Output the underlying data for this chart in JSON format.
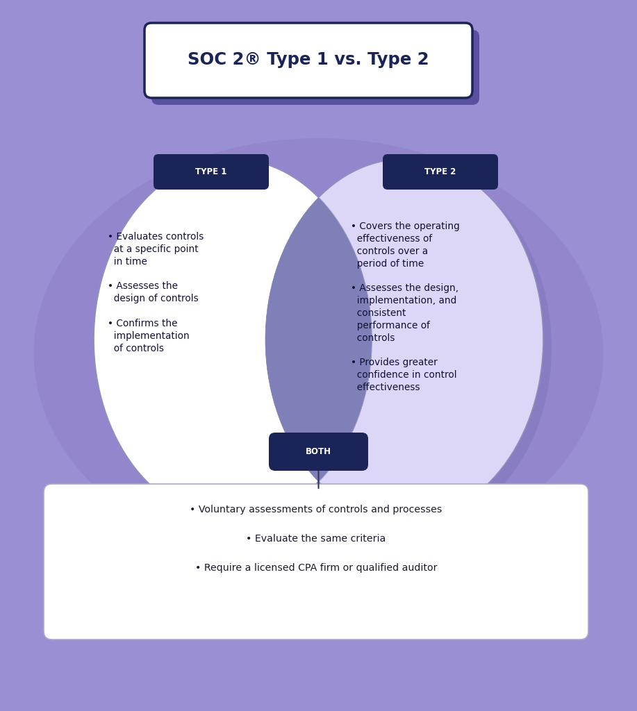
{
  "title": "SOC 2® Type 1 vs. Type 2",
  "background_color": "#9b8fd4",
  "circle_left_color": "#ffffff",
  "circle_right_color": "#dcd6f7",
  "intersection_hatch_color": "#c8c2ee",
  "label_bg_color": "#1a2456",
  "label_text_color": "#ffffff",
  "label1": "TYPE 1",
  "label2": "TYPE 2",
  "label_both": "BOTH",
  "type1_items": [
    "• Evaluates controls\n  at a specific point\n  in time",
    "• Assesses the\n  design of controls",
    "• Confirms the\n  implementation\n  of controls"
  ],
  "type2_items": [
    "• Covers the operating\n  effectiveness of\n  controls over a\n  period of time",
    "• Assesses the design,\n  implementation, and\n  consistent\n  performance of\n  controls",
    "• Provides greater\n  confidence in control\n  effectiveness"
  ],
  "both_items": [
    "• Voluntary assessments of controls and processes",
    "• Evaluate the same criteria",
    "• Require a licensed CPA firm or qualified auditor"
  ],
  "title_box_color": "#ffffff",
  "title_text_color": "#1a2456",
  "both_box_color": "#ffffff",
  "both_text_color": "#1a1a2e",
  "shadow_color": "#7a70b8",
  "circle_edge_color": "#9090bb"
}
